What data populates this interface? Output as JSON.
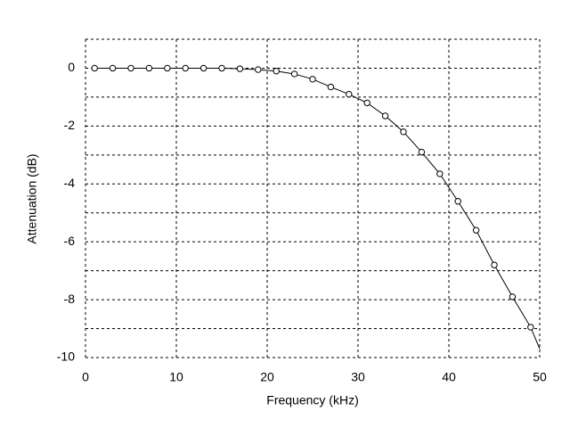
{
  "chart_data": {
    "type": "scatter",
    "xlabel": "Frequency (kHz)",
    "ylabel": "Attenuation (dB)",
    "xlim": [
      0,
      50
    ],
    "ylim": [
      -10,
      1
    ],
    "xticks": [
      0,
      10,
      20,
      30,
      40,
      50
    ],
    "yticks": [
      -10,
      -8,
      -6,
      -4,
      -2,
      0
    ],
    "yminorticks": [
      -9,
      -7,
      -5,
      -3,
      -1,
      1
    ],
    "grid": true,
    "series": [
      {
        "marker": "circle",
        "color": "#000000",
        "x": [
          1,
          3,
          5,
          7,
          9,
          11,
          13,
          15,
          17,
          19,
          21,
          23,
          25,
          27,
          29,
          31,
          33,
          35,
          37,
          39,
          41,
          43,
          45,
          47,
          49
        ],
        "values": [
          0,
          0,
          0,
          0,
          0,
          0,
          0,
          0,
          -0.02,
          -0.05,
          -0.1,
          -0.2,
          -0.38,
          -0.65,
          -0.9,
          -1.2,
          -1.65,
          -2.2,
          -2.9,
          -3.65,
          -4.6,
          -5.6,
          -6.8,
          -7.9,
          -8.95
        ]
      },
      {
        "marker": "none",
        "color": "#000000",
        "x": [
          1,
          3,
          5,
          7,
          9,
          11,
          13,
          15,
          17,
          19,
          21,
          23,
          25,
          27,
          29,
          31,
          33,
          35,
          37,
          39,
          41,
          43,
          45,
          47,
          49,
          50
        ],
        "values": [
          0,
          0,
          0,
          0,
          0,
          0,
          0,
          0,
          -0.02,
          -0.05,
          -0.1,
          -0.2,
          -0.38,
          -0.65,
          -0.9,
          -1.2,
          -1.65,
          -2.2,
          -2.9,
          -3.65,
          -4.6,
          -5.6,
          -6.8,
          -7.9,
          -8.95,
          -9.7
        ]
      }
    ]
  }
}
